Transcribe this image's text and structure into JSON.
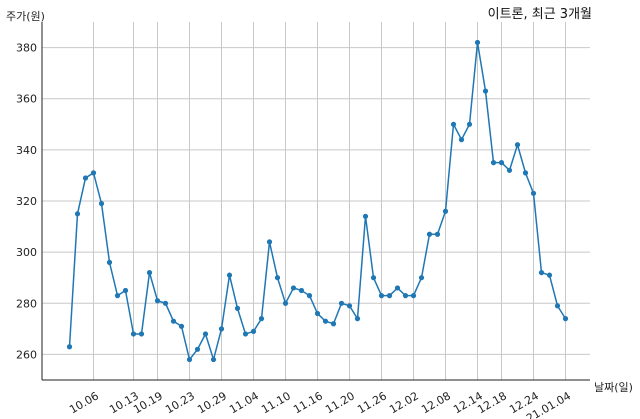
{
  "chart_data": {
    "type": "line",
    "title": "이트론, 최근 3개월",
    "xlabel": "날짜(일)",
    "ylabel": "주가(원)",
    "ylim": [
      250,
      390
    ],
    "yticks": [
      260,
      280,
      300,
      320,
      340,
      360,
      380
    ],
    "grid": true,
    "xtick_labels": [
      "10.06",
      "10.13",
      "10.19",
      "10.23",
      "10.29",
      "11.04",
      "11.10",
      "11.16",
      "11.20",
      "11.26",
      "12.02",
      "12.08",
      "12.14",
      "12.18",
      "12.24",
      "21.01.04"
    ],
    "xtick_positions": [
      3,
      8,
      11,
      15,
      19,
      23,
      27,
      31,
      35,
      39,
      43,
      47,
      51,
      54,
      58,
      62
    ],
    "series": [
      {
        "color": "#1f77b4",
        "values": [
          263,
          315,
          329,
          331,
          319,
          296,
          283,
          285,
          268,
          268,
          292,
          281,
          280,
          273,
          271,
          258,
          262,
          268,
          258,
          270,
          291,
          278,
          268,
          269,
          274,
          304,
          290,
          280,
          286,
          285,
          283,
          276,
          273,
          272,
          280,
          279,
          274,
          314,
          290,
          283,
          283,
          286,
          283,
          283,
          290,
          307,
          307,
          316,
          350,
          344,
          350,
          382,
          363,
          335,
          335,
          332,
          342,
          331,
          323,
          292,
          291,
          279,
          274
        ]
      }
    ]
  }
}
